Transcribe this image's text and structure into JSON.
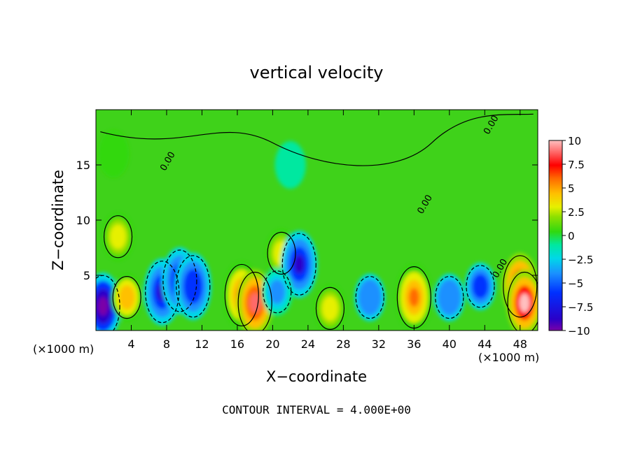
{
  "chart_data": {
    "type": "heatmap",
    "title": "vertical velocity",
    "xlabel": "X−coordinate",
    "ylabel": "Z−coordinate",
    "x_unit_left": "(×1000 m)",
    "x_unit_right": "(×1000 m)",
    "xlim": [
      0,
      50
    ],
    "ylim": [
      0,
      20
    ],
    "x_ticks": [
      4,
      8,
      12,
      16,
      20,
      24,
      28,
      32,
      36,
      40,
      44,
      48
    ],
    "x_tick_labels": [
      "4",
      "8",
      "12",
      "16",
      "20",
      "24",
      "28",
      "32",
      "36",
      "40",
      "44",
      "48"
    ],
    "y_ticks": [
      5,
      10,
      15
    ],
    "y_tick_labels": [
      "5",
      "10",
      "15"
    ],
    "colorbar": {
      "range": [
        -10,
        10
      ],
      "ticks": [
        10,
        7.5,
        5,
        2.5,
        0,
        -2.5,
        -5,
        -7.5,
        -10
      ],
      "tick_labels": [
        "10",
        "7.5",
        "5",
        "2.5",
        "0",
        "−2.5",
        "−5",
        "−7.5",
        "−10"
      ]
    },
    "contour_labels": [
      "0.00",
      "0.00",
      "0.00",
      "0.00"
    ],
    "footer": "CONTOUR INTERVAL = 4.000E+00",
    "features": [
      {
        "x": 0.8,
        "z": 2.2,
        "value": -10
      },
      {
        "x": 3.5,
        "z": 3.0,
        "value": 5.5
      },
      {
        "x": 2.5,
        "z": 8.5,
        "value": 3
      },
      {
        "x": 7.5,
        "z": 3.5,
        "value": -7
      },
      {
        "x": 9.5,
        "z": 4.5,
        "value": -8
      },
      {
        "x": 11,
        "z": 4.0,
        "value": -6
      },
      {
        "x": 16.5,
        "z": 3.2,
        "value": 7.5
      },
      {
        "x": 18,
        "z": 2.5,
        "value": 9
      },
      {
        "x": 21,
        "z": 7.0,
        "value": 4
      },
      {
        "x": 23,
        "z": 6.0,
        "value": -8
      },
      {
        "x": 20.5,
        "z": 3.5,
        "value": -3
      },
      {
        "x": 26.5,
        "z": 2.0,
        "value": 3.5
      },
      {
        "x": 31,
        "z": 3.0,
        "value": -4
      },
      {
        "x": 36,
        "z": 3.0,
        "value": 7
      },
      {
        "x": 40,
        "z": 3.0,
        "value": -4
      },
      {
        "x": 43.5,
        "z": 4.0,
        "value": -5
      },
      {
        "x": 48,
        "z": 4.0,
        "value": 9
      },
      {
        "x": 48.5,
        "z": 2.5,
        "value": 10
      },
      {
        "x": 22,
        "z": 15.0,
        "value": -1
      },
      {
        "x": 2,
        "z": 16.0,
        "value": 1.5
      }
    ]
  }
}
